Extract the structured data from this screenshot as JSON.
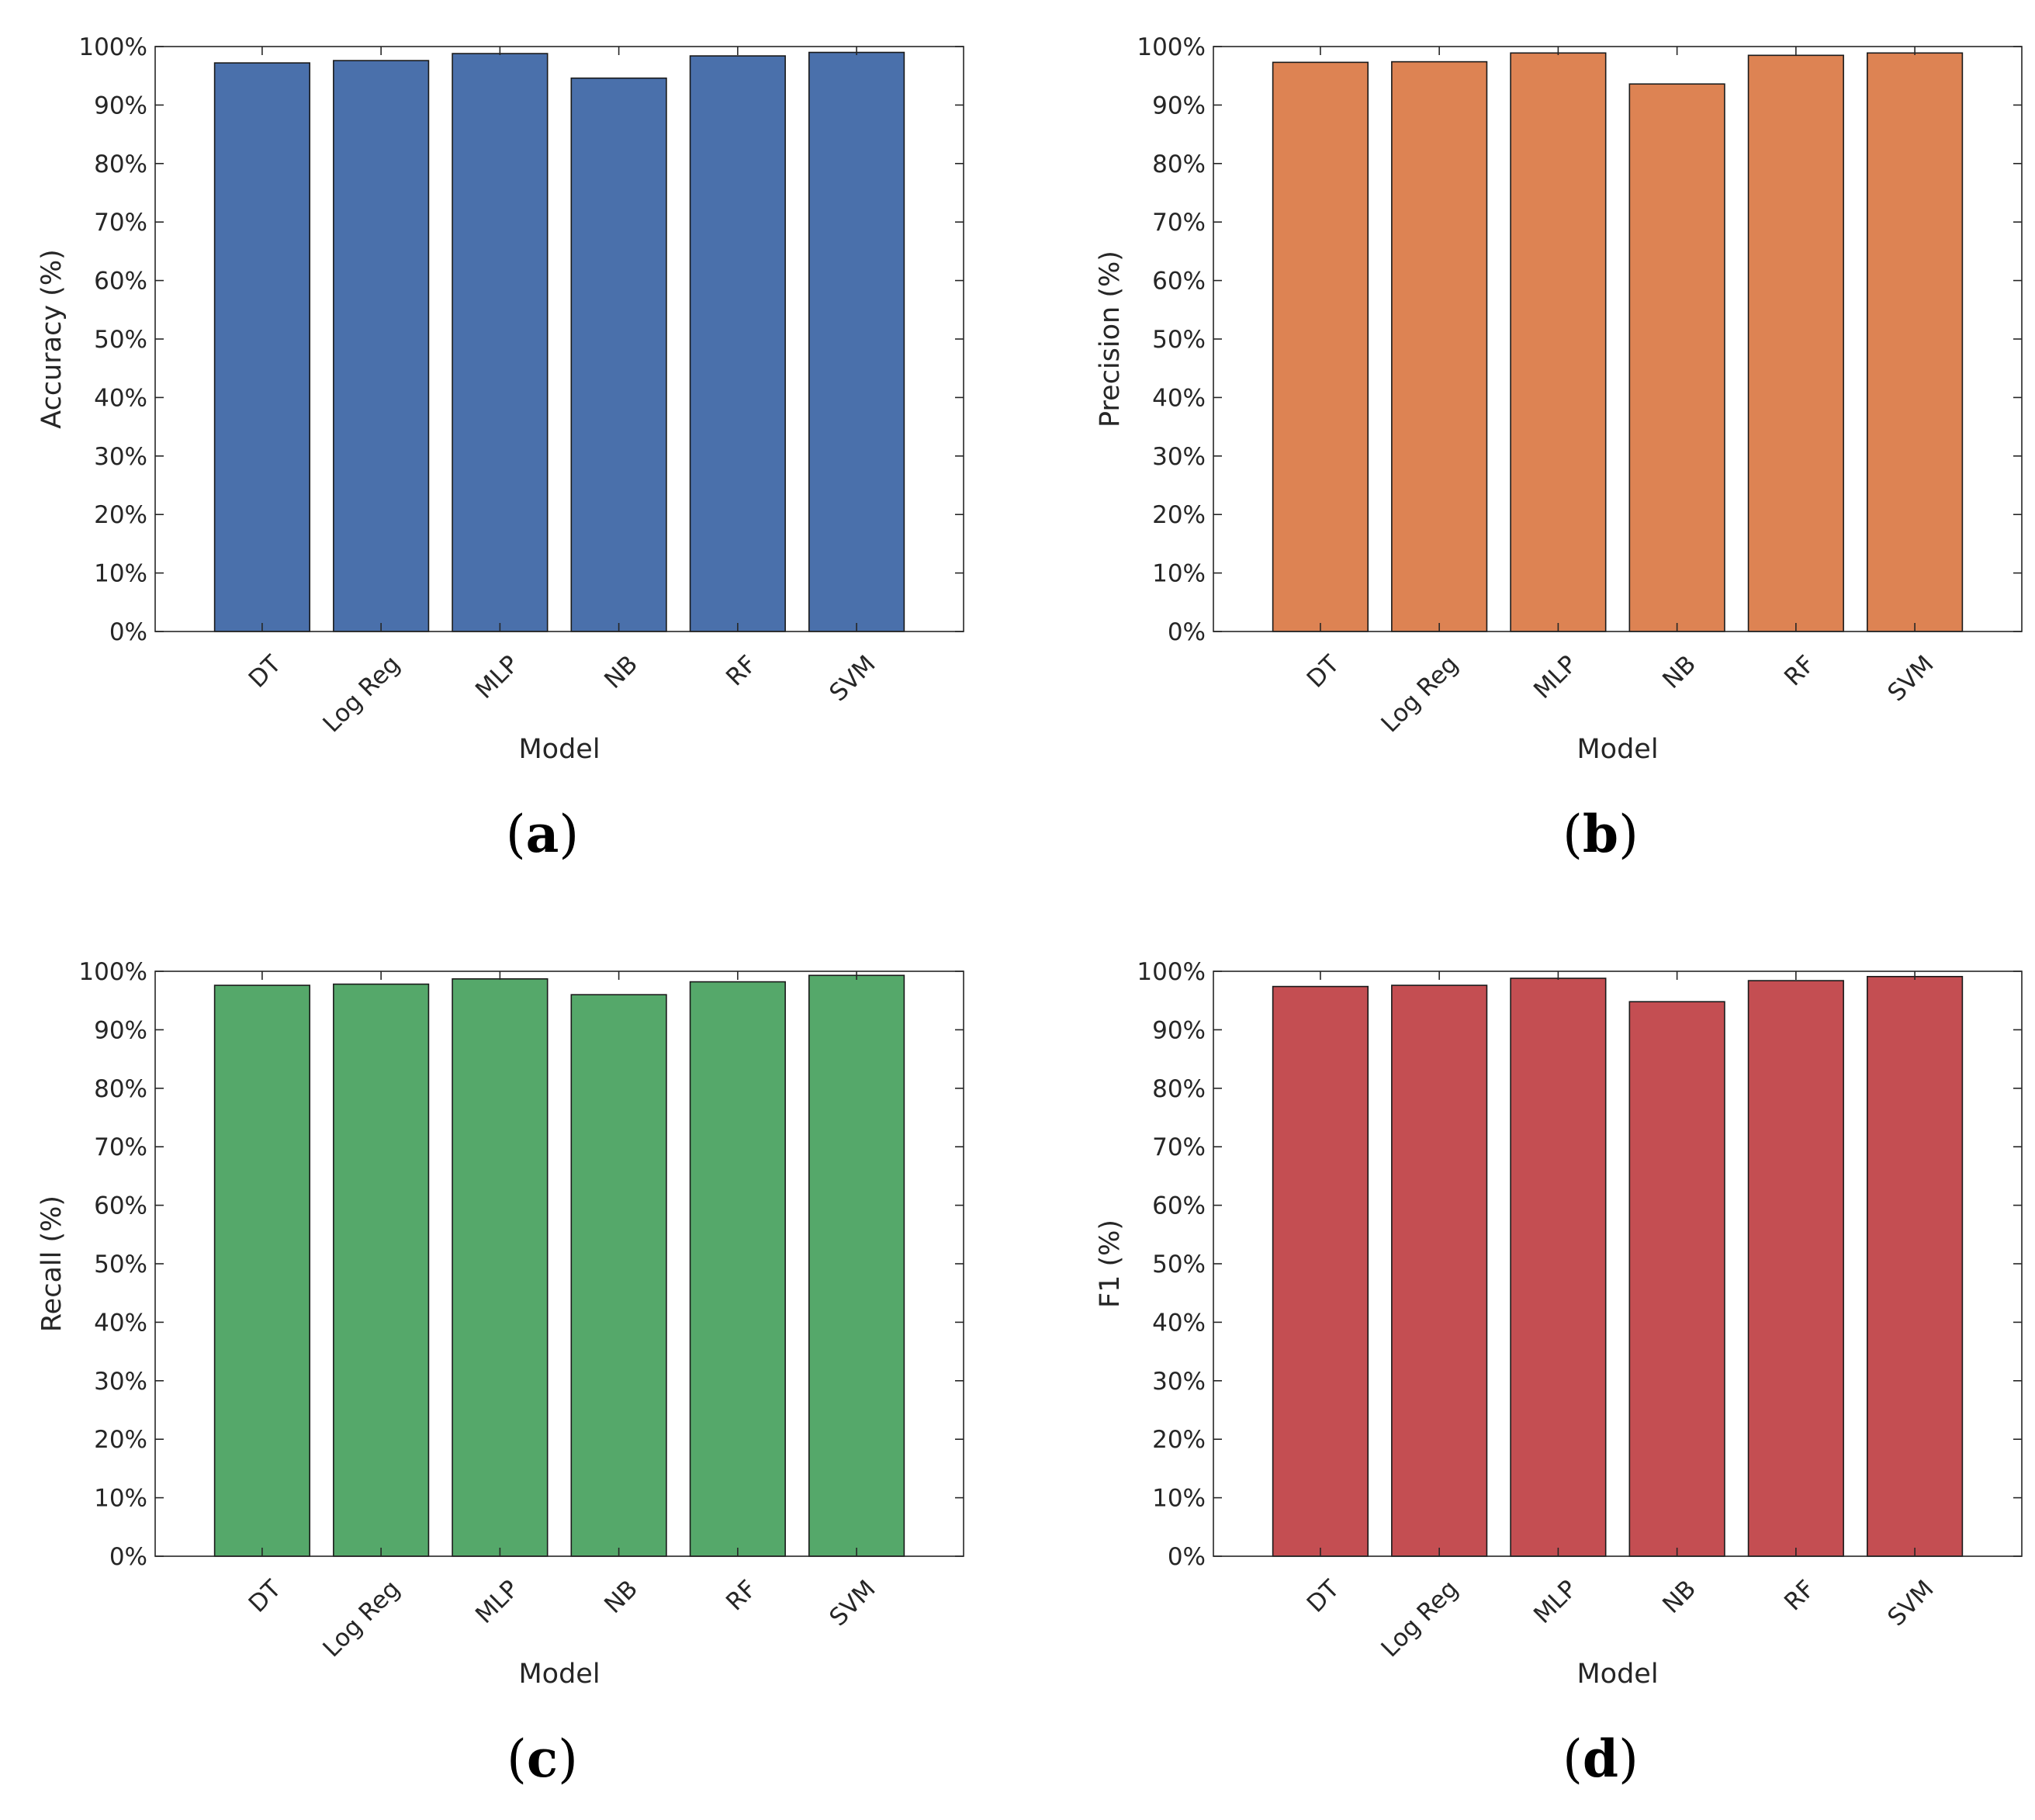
{
  "chart_data": [
    {
      "type": "bar",
      "panel_label": "a",
      "categories": [
        "DT",
        "Log Reg",
        "MLP",
        "NB",
        "RF",
        "SVM"
      ],
      "values": [
        97.2,
        97.6,
        98.8,
        94.6,
        98.4,
        99.0
      ],
      "xlabel": "Model",
      "ylabel": "Accuracy (%)",
      "ylim": [
        0,
        100
      ],
      "yticks": [
        "0%",
        "10%",
        "20%",
        "30%",
        "40%",
        "50%",
        "60%",
        "70%",
        "80%",
        "90%",
        "100%"
      ],
      "color": "#4a70ab",
      "grid": false
    },
    {
      "type": "bar",
      "panel_label": "b",
      "categories": [
        "DT",
        "Log Reg",
        "MLP",
        "NB",
        "RF",
        "SVM"
      ],
      "values": [
        97.3,
        97.4,
        98.9,
        93.6,
        98.5,
        98.9
      ],
      "xlabel": "Model",
      "ylabel": "Precision (%)",
      "ylim": [
        0,
        100
      ],
      "yticks": [
        "0%",
        "10%",
        "20%",
        "30%",
        "40%",
        "50%",
        "60%",
        "70%",
        "80%",
        "90%",
        "100%"
      ],
      "color": "#dd8353",
      "grid": false
    },
    {
      "type": "bar",
      "panel_label": "c",
      "categories": [
        "DT",
        "Log Reg",
        "MLP",
        "NB",
        "RF",
        "SVM"
      ],
      "values": [
        97.6,
        97.8,
        98.7,
        96.0,
        98.2,
        99.3
      ],
      "xlabel": "Model",
      "ylabel": "Recall (%)",
      "ylim": [
        0,
        100
      ],
      "yticks": [
        "0%",
        "10%",
        "20%",
        "30%",
        "40%",
        "50%",
        "60%",
        "70%",
        "80%",
        "90%",
        "100%"
      ],
      "color": "#55a86a",
      "grid": false
    },
    {
      "type": "bar",
      "panel_label": "d",
      "categories": [
        "DT",
        "Log Reg",
        "MLP",
        "NB",
        "RF",
        "SVM"
      ],
      "values": [
        97.4,
        97.6,
        98.8,
        94.8,
        98.4,
        99.1
      ],
      "xlabel": "Model",
      "ylabel": "F1 (%)",
      "ylim": [
        0,
        100
      ],
      "yticks": [
        "0%",
        "10%",
        "20%",
        "30%",
        "40%",
        "50%",
        "60%",
        "70%",
        "80%",
        "90%",
        "100%"
      ],
      "color": "#c44e52",
      "grid": false
    }
  ]
}
